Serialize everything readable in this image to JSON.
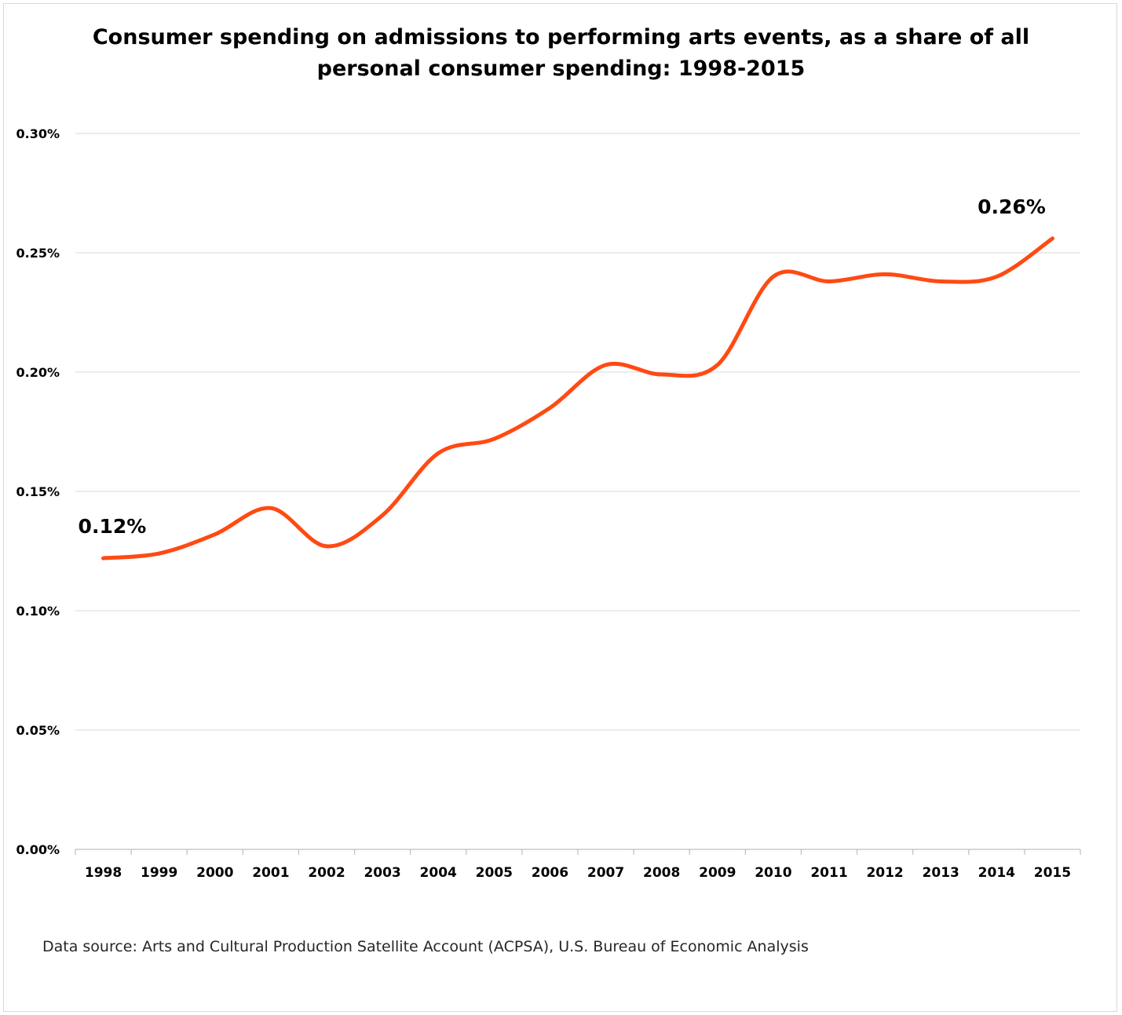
{
  "chart_data": {
    "type": "line",
    "title_line1": "Consumer spending on admissions to performing arts events, as a share of all",
    "title_line2": "personal consumer spending: 1998-2015",
    "xlabel": "",
    "ylabel": "",
    "ylim": [
      0,
      0.3
    ],
    "yticks": [
      "0.00%",
      "0.05%",
      "0.10%",
      "0.15%",
      "0.20%",
      "0.25%",
      "0.30%"
    ],
    "categories": [
      "1998",
      "1999",
      "2000",
      "2001",
      "2002",
      "2003",
      "2004",
      "2005",
      "2006",
      "2007",
      "2008",
      "2009",
      "2010",
      "2011",
      "2012",
      "2013",
      "2014",
      "2015"
    ],
    "series": [
      {
        "values": [
          0.122,
          0.124,
          0.132,
          0.143,
          0.127,
          0.14,
          0.166,
          0.172,
          0.185,
          0.203,
          0.199,
          0.203,
          0.24,
          0.238,
          0.241,
          0.238,
          0.24,
          0.256
        ],
        "color": "#ff4a12"
      }
    ],
    "annotations": [
      {
        "index": 0,
        "text": "0.12%"
      },
      {
        "index": 17,
        "text": "0.26%"
      }
    ],
    "grid": true,
    "source": "Data source: Arts and Cultural Production Satellite Account (ACPSA), U.S. Bureau of Economic Analysis"
  }
}
